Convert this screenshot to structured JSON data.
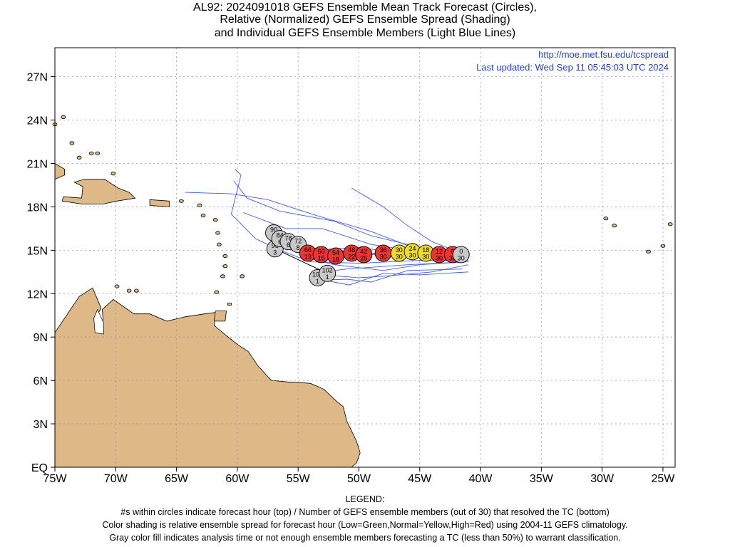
{
  "title": {
    "line1": "AL92: 2024091018 GEFS Ensemble Mean Track Forecast (Circles),",
    "line2": "Relative (Normalized) GEFS Ensemble Spread (Shading)",
    "line3": "and Individual GEFS Ensemble Members (Light Blue Lines)"
  },
  "credit": {
    "url": "http://moe.met.fsu.edu/tcspread",
    "updated": "Last updated: Wed Sep 11 05:45:03 UTC 2024"
  },
  "axes": {
    "lon_range": [
      -75,
      -24
    ],
    "lat_range": [
      0,
      29
    ],
    "lon_ticks": [
      {
        "value": -75,
        "label": "75W"
      },
      {
        "value": -70,
        "label": "70W"
      },
      {
        "value": -65,
        "label": "65W"
      },
      {
        "value": -60,
        "label": "60W"
      },
      {
        "value": -55,
        "label": "55W"
      },
      {
        "value": -50,
        "label": "50W"
      },
      {
        "value": -45,
        "label": "45W"
      },
      {
        "value": -40,
        "label": "40W"
      },
      {
        "value": -35,
        "label": "35W"
      },
      {
        "value": -30,
        "label": "30W"
      },
      {
        "value": -25,
        "label": "25W"
      }
    ],
    "lat_ticks": [
      {
        "value": 0,
        "label": "EQ"
      },
      {
        "value": 3,
        "label": "3N"
      },
      {
        "value": 6,
        "label": "6N"
      },
      {
        "value": 9,
        "label": "9N"
      },
      {
        "value": 12,
        "label": "12N"
      },
      {
        "value": 15,
        "label": "15N"
      },
      {
        "value": 18,
        "label": "18N"
      },
      {
        "value": 21,
        "label": "21N"
      },
      {
        "value": 24,
        "label": "24N"
      },
      {
        "value": 27,
        "label": "27N"
      }
    ],
    "grid": "dotted"
  },
  "colors": {
    "land": "#deb887",
    "ocean": "#ffffff",
    "member_line": "#3b5bff",
    "mean_line": "#000000",
    "high": "#ee3333",
    "normal": "#eedd22",
    "gray": "#c8c8c8",
    "credit": "#1f3fdc"
  },
  "forecast_points": [
    {
      "hour": "0",
      "members": "30",
      "lon": -41.6,
      "lat": 14.7,
      "category": "gray"
    },
    {
      "hour": "6",
      "members": "30",
      "lon": -42.3,
      "lat": 14.7,
      "category": "high"
    },
    {
      "hour": "12",
      "members": "30",
      "lon": -43.4,
      "lat": 14.7,
      "category": "high"
    },
    {
      "hour": "18",
      "members": "30",
      "lon": -44.5,
      "lat": 14.8,
      "category": "normal"
    },
    {
      "hour": "24",
      "members": "30",
      "lon": -45.6,
      "lat": 14.9,
      "category": "normal"
    },
    {
      "hour": "30",
      "members": "30",
      "lon": -46.7,
      "lat": 14.8,
      "category": "normal"
    },
    {
      "hour": "36",
      "members": "30",
      "lon": -48.0,
      "lat": 14.8,
      "category": "high"
    },
    {
      "hour": "42",
      "members": "25",
      "lon": -49.6,
      "lat": 14.7,
      "category": "high"
    },
    {
      "hour": "48",
      "members": "22",
      "lon": -50.6,
      "lat": 14.8,
      "category": "high"
    },
    {
      "hour": "54",
      "members": "18",
      "lon": -51.9,
      "lat": 14.6,
      "category": "high"
    },
    {
      "hour": "60",
      "members": "15",
      "lon": -53.1,
      "lat": 14.7,
      "category": "high"
    },
    {
      "hour": "66",
      "members": "13",
      "lon": -54.2,
      "lat": 14.8,
      "category": "high"
    },
    {
      "hour": "72",
      "members": "8",
      "lon": -55.0,
      "lat": 15.4,
      "category": "gray"
    },
    {
      "hour": "78",
      "members": "6",
      "lon": -55.8,
      "lat": 15.6,
      "category": "gray"
    },
    {
      "hour": "84",
      "members": "6",
      "lon": -56.5,
      "lat": 15.8,
      "category": "gray"
    },
    {
      "hour": "90",
      "members": "6",
      "lon": -57.0,
      "lat": 16.2,
      "category": "gray"
    },
    {
      "hour": "96",
      "members": "3",
      "lon": -56.9,
      "lat": 15.1,
      "category": "gray"
    },
    {
      "hour": "102",
      "members": "1",
      "lon": -52.6,
      "lat": 13.4,
      "category": "gray"
    },
    {
      "hour": "108",
      "members": "1",
      "lon": -53.4,
      "lat": 13.1,
      "category": "gray"
    }
  ],
  "member_tracks": [
    [
      [
        -41.0,
        14.3
      ],
      [
        -45,
        14.3
      ],
      [
        -50,
        14.1
      ],
      [
        -54,
        14.2
      ],
      [
        -56.5,
        15.0
      ]
    ],
    [
      [
        -41.0,
        14.2
      ],
      [
        -46,
        14.0
      ],
      [
        -51,
        13.7
      ],
      [
        -53.9,
        13.4
      ]
    ],
    [
      [
        -41.0,
        14.0
      ],
      [
        -44,
        13.5
      ],
      [
        -48,
        13.2
      ],
      [
        -50,
        13.1
      ],
      [
        -53,
        13.3
      ]
    ],
    [
      [
        -41.5,
        13.7
      ],
      [
        -46,
        13.6
      ],
      [
        -49,
        12.8
      ],
      [
        -51,
        13.0
      ],
      [
        -54,
        12.9
      ]
    ],
    [
      [
        -41.0,
        14.5
      ],
      [
        -45,
        14.9
      ],
      [
        -49,
        15.4
      ],
      [
        -53,
        16.5
      ],
      [
        -56,
        16.5
      ],
      [
        -59.5,
        17.6
      ]
    ],
    [
      [
        -41.0,
        14.6
      ],
      [
        -45,
        15.2
      ],
      [
        -49,
        16.0
      ],
      [
        -52,
        17.0
      ],
      [
        -56.5,
        17.7
      ],
      [
        -59.2,
        18.6
      ],
      [
        -60.3,
        19.8
      ]
    ],
    [
      [
        -41.0,
        14.6
      ],
      [
        -44,
        15.6
      ],
      [
        -46,
        16.7
      ],
      [
        -48,
        18.0
      ],
      [
        -50.6,
        19.3
      ]
    ],
    [
      [
        -41.0,
        14.4
      ],
      [
        -45,
        14.6
      ],
      [
        -50,
        15.2
      ],
      [
        -54,
        15.0
      ],
      [
        -57,
        15.2
      ],
      [
        -58.5,
        15.8
      ],
      [
        -60.5,
        17.5
      ],
      [
        -59.7,
        20.2
      ],
      [
        -60.2,
        20.6
      ]
    ],
    [
      [
        -41.0,
        14.5
      ],
      [
        -45,
        15.0
      ],
      [
        -49,
        16.3
      ],
      [
        -53.5,
        17.4
      ],
      [
        -57.5,
        18.5
      ],
      [
        -60.5,
        18.9
      ],
      [
        -64.3,
        19.0
      ]
    ],
    [
      [
        -41.0,
        14.4
      ],
      [
        -46,
        14.5
      ],
      [
        -50,
        14.8
      ],
      [
        -53,
        15.1
      ],
      [
        -57,
        15.4
      ]
    ],
    [
      [
        -41.2,
        14.2
      ],
      [
        -45,
        14.0
      ],
      [
        -48,
        13.6
      ],
      [
        -52,
        14.0
      ],
      [
        -54.5,
        14.5
      ]
    ],
    [
      [
        -41.0,
        13.5
      ],
      [
        -45,
        13.3
      ],
      [
        -48,
        13.4
      ],
      [
        -50.8,
        12.6
      ],
      [
        -53.9,
        13.1
      ]
    ]
  ]
}
